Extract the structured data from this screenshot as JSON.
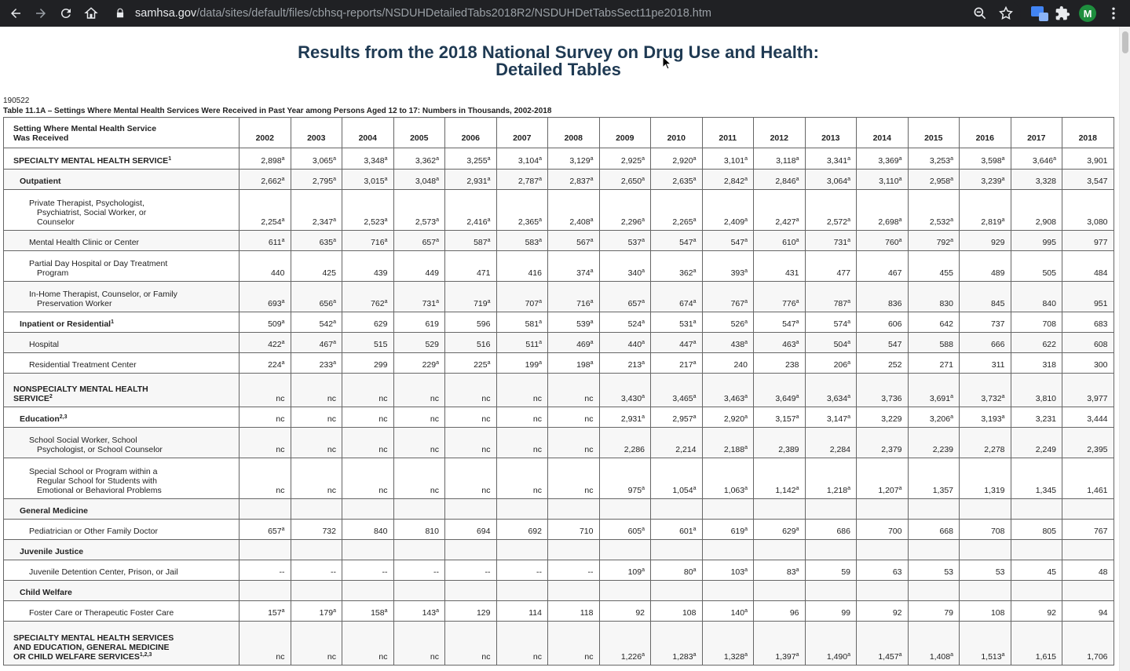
{
  "browser": {
    "url_host": "samhsa.gov",
    "url_path": "/data/sites/default/files/cbhsq-reports/NSDUHDetailedTabs2018R2/NSDUHDetTabsSect11pe2018.htm",
    "profile_initial": "M",
    "icons": [
      "back-icon",
      "forward-icon",
      "reload-icon",
      "home-icon",
      "lock-icon",
      "zoom-icon",
      "star-icon",
      "extension-icon",
      "puzzle-icon",
      "menu-icon"
    ]
  },
  "page": {
    "title_line1": "Results from the 2018 National Survey on Drug Use and Health:",
    "title_line2": "Detailed Tables",
    "code": "190522",
    "caption": "Table 11.1A – Settings Where Mental Health Services Were Received in Past Year among Persons Aged 12 to 17: Numbers in Thousands, 2002-2018",
    "colors": {
      "title": "#1f3a53",
      "chrome": "#202124"
    }
  },
  "table": {
    "header_line1": "Setting Where Mental Health Service",
    "header_line2": "Was Received",
    "years": [
      "2002",
      "2003",
      "2004",
      "2005",
      "2006",
      "2007",
      "2008",
      "2009",
      "2010",
      "2011",
      "2012",
      "2013",
      "2014",
      "2015",
      "2016",
      "2017",
      "2018"
    ],
    "rows": [
      {
        "label": "SPECIALTY MENTAL HEALTH SERVICE",
        "sup": "1",
        "level": 0,
        "h": 27,
        "values": [
          "2,898a",
          "3,065a",
          "3,348a",
          "3,362a",
          "3,255a",
          "3,104a",
          "3,129a",
          "2,925a",
          "2,920a",
          "3,101a",
          "3,118a",
          "3,341a",
          "3,369a",
          "3,253a",
          "3,598a",
          "3,646a",
          "3,901"
        ]
      },
      {
        "label": "Outpatient",
        "level": 1,
        "h": 26,
        "values": [
          "2,662a",
          "2,795a",
          "3,015a",
          "3,048a",
          "2,931a",
          "2,787a",
          "2,837a",
          "2,650a",
          "2,635a",
          "2,842a",
          "2,846a",
          "3,064a",
          "3,110a",
          "2,958a",
          "3,239a",
          "3,328",
          "3,547"
        ]
      },
      {
        "label": "Private Therapist, Psychologist, Psychiatrist, Social Worker, or Counselor",
        "level": 2,
        "h": 52,
        "values": [
          "2,254a",
          "2,347a",
          "2,523a",
          "2,573a",
          "2,416a",
          "2,365a",
          "2,408a",
          "2,296a",
          "2,265a",
          "2,409a",
          "2,427a",
          "2,572a",
          "2,698a",
          "2,532a",
          "2,819a",
          "2,908",
          "3,080"
        ]
      },
      {
        "label": "Mental Health Clinic or Center",
        "level": 2,
        "h": 26,
        "values": [
          "611a",
          "635a",
          "716a",
          "657a",
          "587a",
          "583a",
          "567a",
          "537a",
          "547a",
          "547a",
          "610a",
          "731a",
          "760a",
          "792a",
          "929",
          "995",
          "977"
        ]
      },
      {
        "label": "Partial Day Hospital or Day Treatment Program",
        "level": 2,
        "h": 39,
        "values": [
          "440",
          "425",
          "439",
          "449",
          "471",
          "416",
          "374a",
          "340a",
          "362a",
          "393a",
          "431",
          "477",
          "467",
          "455",
          "489",
          "505",
          "484"
        ]
      },
      {
        "label": "In-Home Therapist, Counselor, or Family Preservation Worker",
        "level": 2,
        "h": 39,
        "values": [
          "693a",
          "656a",
          "762a",
          "731a",
          "719a",
          "707a",
          "716a",
          "657a",
          "674a",
          "767a",
          "776a",
          "787a",
          "836",
          "830",
          "845",
          "840",
          "951"
        ]
      },
      {
        "label": "Inpatient or Residential",
        "sup": "1",
        "level": 1,
        "h": 26,
        "values": [
          "509a",
          "542a",
          "629",
          "619",
          "596",
          "581a",
          "539a",
          "524a",
          "531a",
          "526a",
          "547a",
          "574a",
          "606",
          "642",
          "737",
          "708",
          "683"
        ]
      },
      {
        "label": "Hospital",
        "level": 2,
        "h": 26,
        "values": [
          "422a",
          "467a",
          "515",
          "529",
          "516",
          "511a",
          "469a",
          "440a",
          "447a",
          "438a",
          "463a",
          "504a",
          "547",
          "588",
          "666",
          "622",
          "608"
        ]
      },
      {
        "label": "Residential Treatment Center",
        "level": 2,
        "h": 26,
        "values": [
          "224a",
          "233a",
          "299",
          "229a",
          "225a",
          "199a",
          "198a",
          "213a",
          "217a",
          "240",
          "238",
          "206a",
          "252",
          "271",
          "311",
          "318",
          "300"
        ]
      },
      {
        "label": "NONSPECIALTY MENTAL HEALTH SERVICE",
        "sup": "2",
        "level": 0,
        "h": 43,
        "values": [
          "nc",
          "nc",
          "nc",
          "nc",
          "nc",
          "nc",
          "nc",
          "3,430a",
          "3,465a",
          "3,463a",
          "3,649a",
          "3,634a",
          "3,736",
          "3,691a",
          "3,732a",
          "3,810",
          "3,977"
        ]
      },
      {
        "label": "Education",
        "sup": "2,3",
        "level": 1,
        "h": 26,
        "values": [
          "nc",
          "nc",
          "nc",
          "nc",
          "nc",
          "nc",
          "nc",
          "2,931a",
          "2,957a",
          "2,920a",
          "3,157a",
          "3,147a",
          "3,229",
          "3,206a",
          "3,193a",
          "3,231",
          "3,444"
        ]
      },
      {
        "label": "School Social Worker, School Psychologist, or School Counselor",
        "level": 2,
        "h": 39,
        "values": [
          "nc",
          "nc",
          "nc",
          "nc",
          "nc",
          "nc",
          "nc",
          "2,286",
          "2,214",
          "2,188a",
          "2,389",
          "2,284",
          "2,379",
          "2,239",
          "2,278",
          "2,249",
          "2,395"
        ]
      },
      {
        "label": "Special School or Program within a Regular School for Students with Emotional or Behavioral Problems",
        "level": 2,
        "h": 52,
        "values": [
          "nc",
          "nc",
          "nc",
          "nc",
          "nc",
          "nc",
          "nc",
          "975a",
          "1,054a",
          "1,063a",
          "1,142a",
          "1,218a",
          "1,207a",
          "1,357",
          "1,319",
          "1,345",
          "1,461"
        ]
      },
      {
        "label": "General Medicine",
        "level": 1,
        "h": 26,
        "values": [
          "",
          "",
          "",
          "",
          "",
          "",
          "",
          "",
          "",
          "",
          "",
          "",
          "",
          "",
          "",
          "",
          ""
        ]
      },
      {
        "label": "Pediatrician or Other Family Doctor",
        "level": 2,
        "h": 26,
        "values": [
          "657a",
          "732",
          "840",
          "810",
          "694",
          "692",
          "710",
          "605a",
          "601a",
          "619a",
          "629a",
          "686",
          "700",
          "668",
          "708",
          "805",
          "767"
        ]
      },
      {
        "label": "Juvenile Justice",
        "level": 1,
        "h": 26,
        "values": [
          "",
          "",
          "",
          "",
          "",
          "",
          "",
          "",
          "",
          "",
          "",
          "",
          "",
          "",
          "",
          "",
          ""
        ]
      },
      {
        "label": "Juvenile Detention Center, Prison, or Jail",
        "level": 2,
        "h": 26,
        "values": [
          "--",
          "--",
          "--",
          "--",
          "--",
          "--",
          "--",
          "109a",
          "80a",
          "103a",
          "83a",
          "59",
          "63",
          "53",
          "53",
          "45",
          "48"
        ]
      },
      {
        "label": "Child Welfare",
        "level": 1,
        "h": 26,
        "values": [
          "",
          "",
          "",
          "",
          "",
          "",
          "",
          "",
          "",
          "",
          "",
          "",
          "",
          "",
          "",
          "",
          ""
        ]
      },
      {
        "label": "Foster Care or Therapeutic Foster Care",
        "level": 2,
        "h": 26,
        "values": [
          "157a",
          "179a",
          "158a",
          "143a",
          "129",
          "114",
          "118",
          "92",
          "108",
          "140a",
          "96",
          "99",
          "92",
          "79",
          "108",
          "92",
          "94"
        ]
      },
      {
        "label": "SPECIALTY MENTAL HEALTH SERVICES AND EDUCATION, GENERAL MEDICINE OR CHILD WELFARE SERVICES",
        "sup": "1,2,3",
        "level": 0,
        "h": 56,
        "values": [
          "nc",
          "nc",
          "nc",
          "nc",
          "nc",
          "nc",
          "nc",
          "1,226a",
          "1,283a",
          "1,328a",
          "1,397a",
          "1,490a",
          "1,457a",
          "1,408a",
          "1,513a",
          "1,615",
          "1,706"
        ]
      }
    ]
  }
}
